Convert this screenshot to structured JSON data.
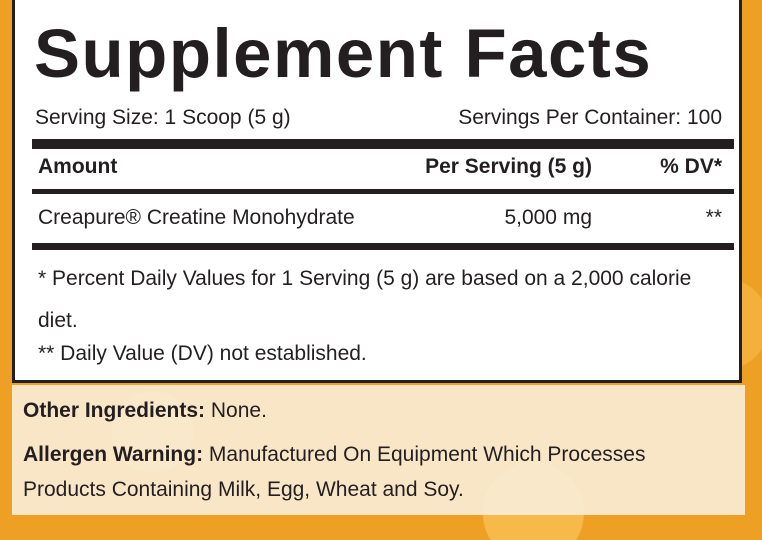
{
  "title": "Supplement Facts",
  "serving_size": "Serving Size: 1 Scoop (5 g)",
  "servings_per_container": "Servings Per Container: 100",
  "table": {
    "header": [
      "Amount",
      "Per Serving (5 g)",
      "% DV*"
    ],
    "rows": [
      [
        "Creapure® Creatine Monohydrate",
        "5,000 mg",
        "**"
      ]
    ]
  },
  "footnotes": [
    "* Percent Daily Values for 1 Serving (5 g) are based on a 2,000 calorie diet.",
    "** Daily Value (DV) not established."
  ],
  "other_ingredients": {
    "label": "Other Ingredients:",
    "text": "None."
  },
  "allergen_warning": {
    "label": "Allergen Warning:",
    "text": "Manufactured On Equipment Which Processes Products Containing Milk, Egg, Wheat and Soy."
  }
}
